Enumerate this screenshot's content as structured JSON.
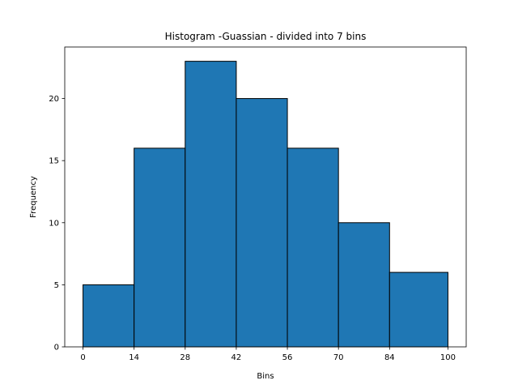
{
  "chart_data": {
    "type": "bar",
    "title": "Histogram -Guassian - divided into 7 bins",
    "xlabel": "Bins",
    "ylabel": "Frequency",
    "bin_edges": [
      0,
      14,
      28,
      42,
      56,
      70,
      84,
      100
    ],
    "values": [
      5,
      16,
      23,
      20,
      16,
      10,
      6
    ],
    "xticks": [
      0,
      14,
      28,
      42,
      56,
      70,
      84,
      100
    ],
    "yticks": [
      0,
      5,
      10,
      15,
      20
    ],
    "xlim": [
      -5,
      105
    ],
    "ylim": [
      0,
      24.15
    ],
    "grid": false,
    "colors": {
      "bar_fill": "#1f77b4",
      "bar_edge": "#000000"
    }
  }
}
